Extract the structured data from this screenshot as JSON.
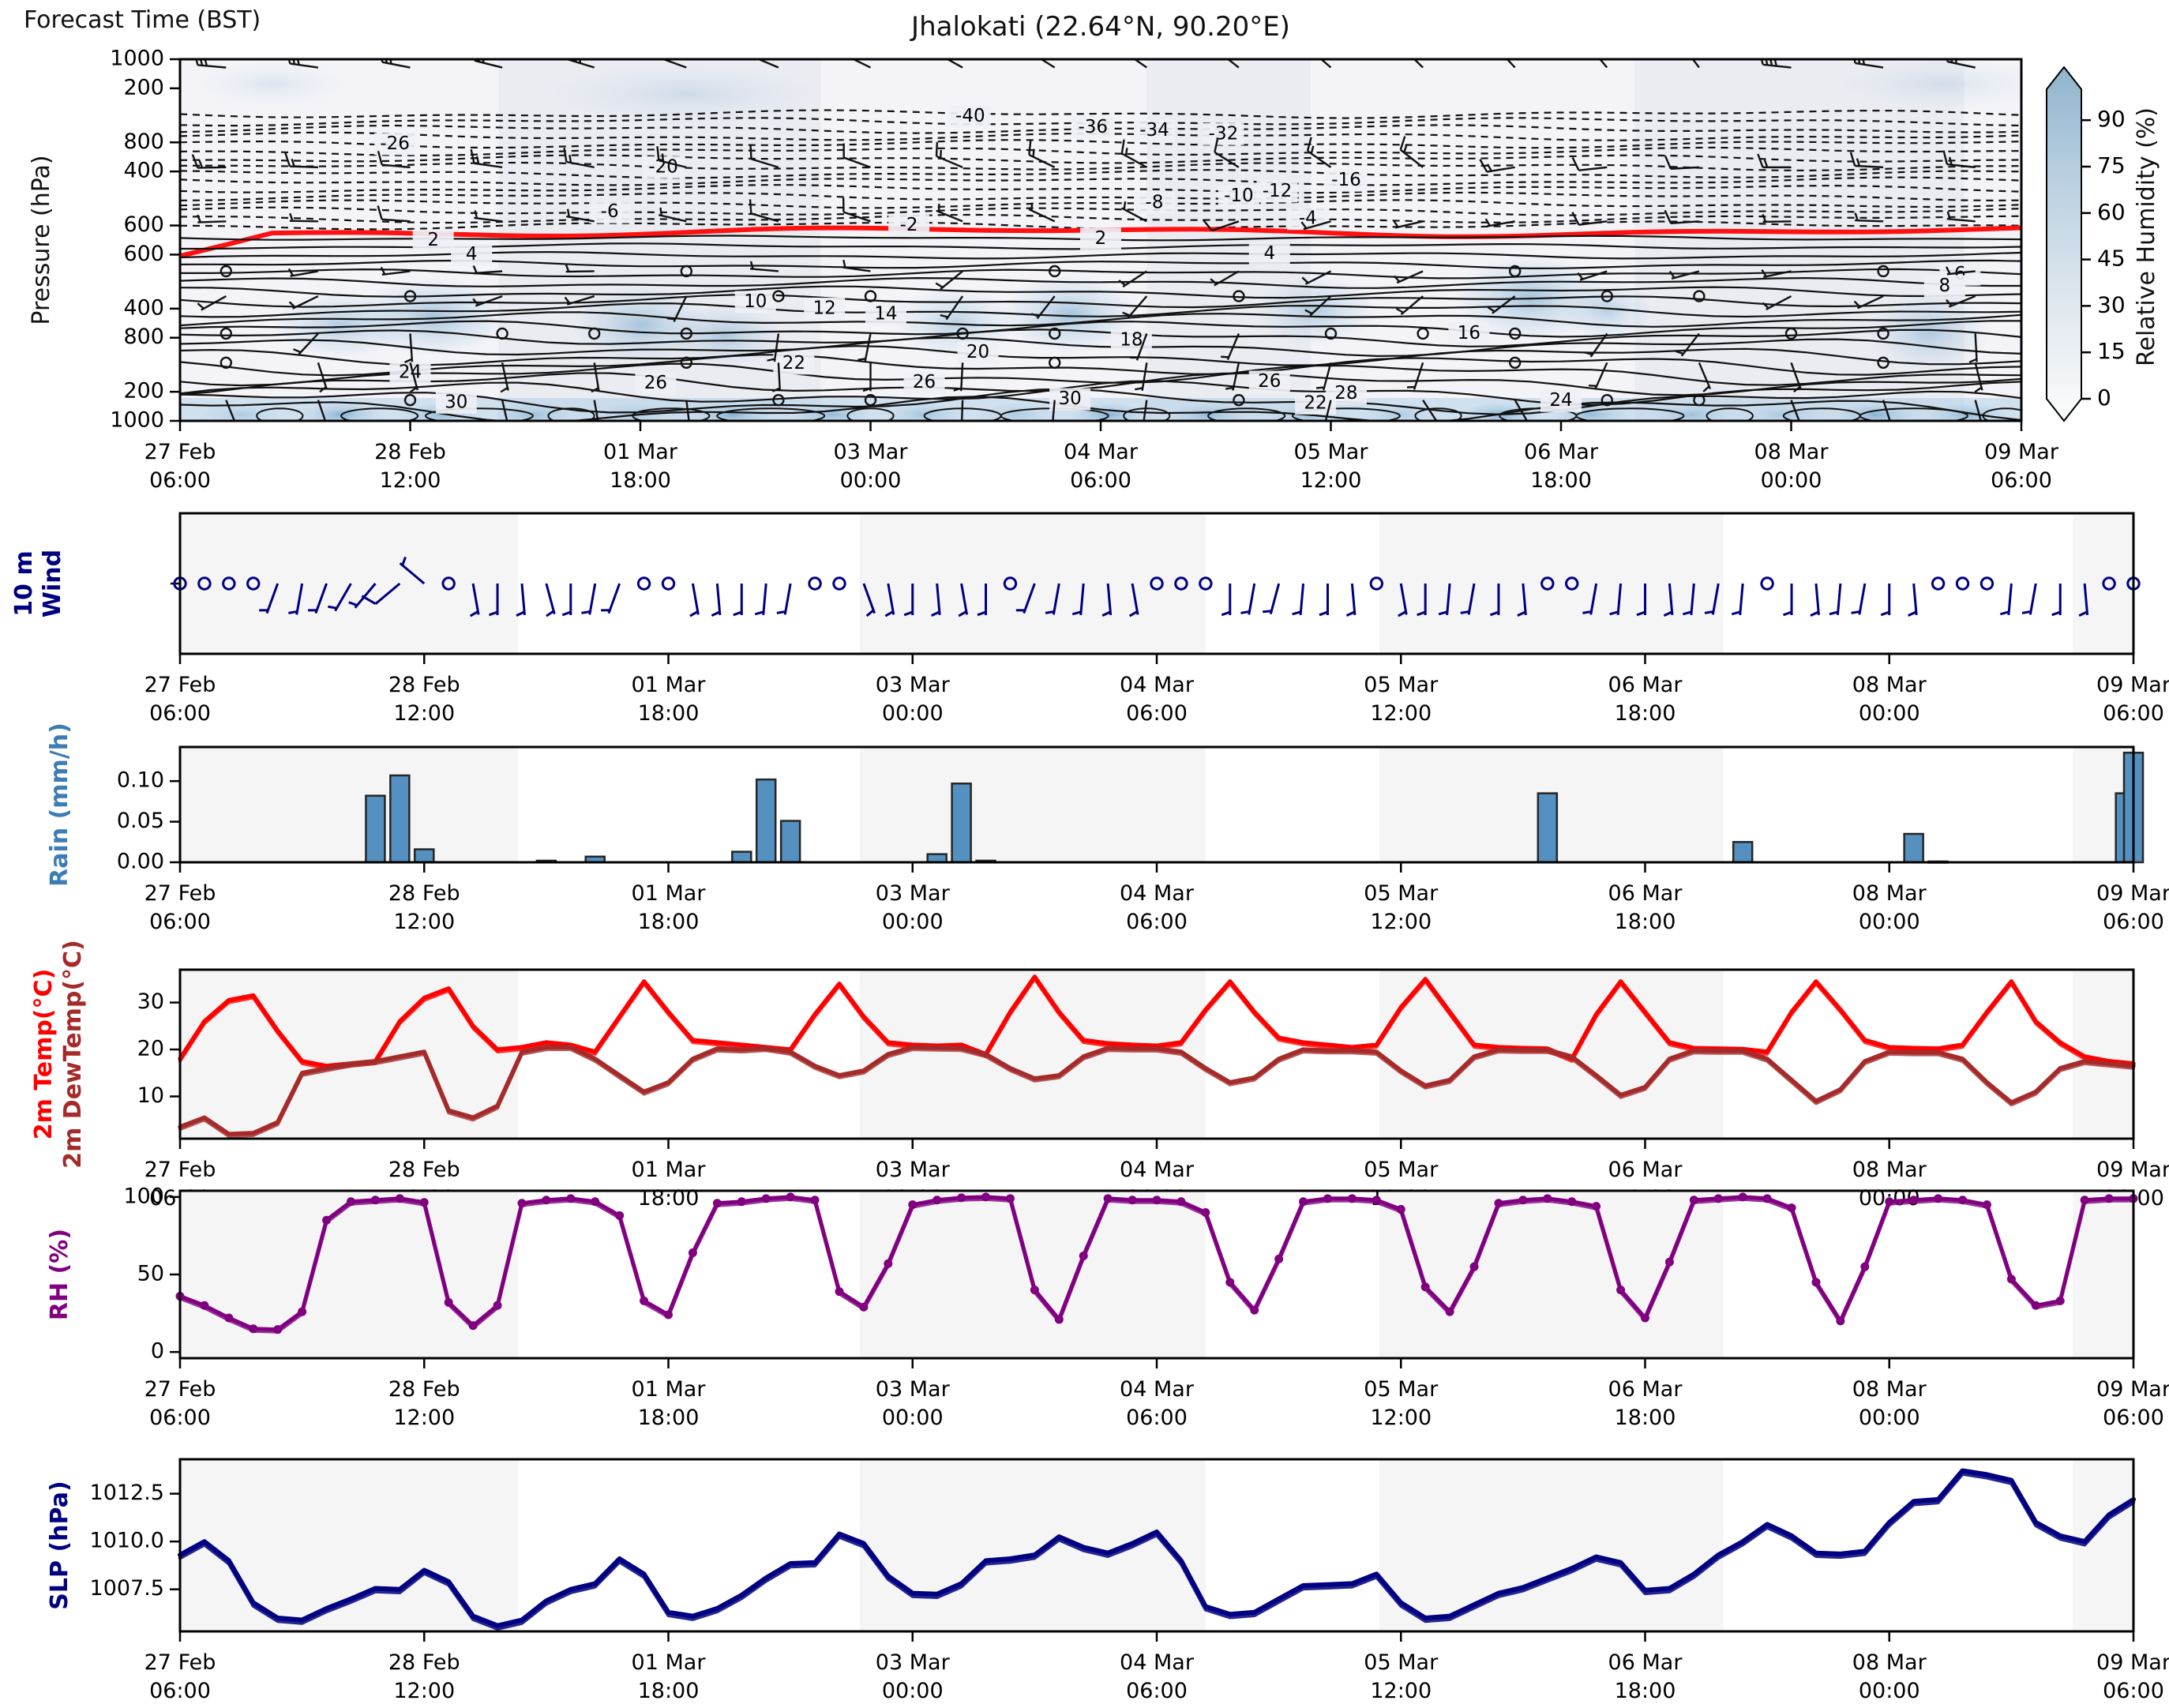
{
  "header": {
    "forecast_time_label": "Forecast Time (BST)",
    "title": "Jhalokati (22.64°N, 90.20°E)"
  },
  "labels": {
    "pressure": "Pressure (hPa)",
    "wind_line1": "10 m",
    "wind_line2": "Wind",
    "rain": "Rain (mm/h)",
    "temp": "2m Temp(°C)",
    "dew": "2m DewTemp(°C)",
    "rh": "RH (%)",
    "slp": "SLP (hPa)",
    "colorbar": "Relative Humidity (%)"
  },
  "colors": {
    "band": "#f5f5f6",
    "section_bg": "#ebecf2",
    "frame": "#000000",
    "temp": "#ff0000",
    "dew": "#a52a2a",
    "rh": "#800080",
    "slp": "#000080",
    "wind_barb": "#000080",
    "rain_fill": "#5491c1",
    "rain_edge": "#262626",
    "zero_line": "#ff1111",
    "contour": "#111111",
    "blob": "#5b94c0",
    "cbar_low": "#fcfcfc",
    "cbar_high": "#8fb4cd"
  },
  "x_axis": {
    "hours_total": 240,
    "step_hours": 3,
    "tick_hours": [
      0,
      30,
      60,
      90,
      120,
      150,
      180,
      210,
      240
    ],
    "tick_labels": [
      [
        "27 Feb",
        "06:00"
      ],
      [
        "28 Feb",
        "12:00"
      ],
      [
        "01 Mar",
        "18:00"
      ],
      [
        "03 Mar",
        "00:00"
      ],
      [
        "04 Mar",
        "06:00"
      ],
      [
        "05 Mar",
        "12:00"
      ],
      [
        "06 Mar",
        "18:00"
      ],
      [
        "08 Mar",
        "00:00"
      ],
      [
        "09 Mar",
        "06:00"
      ]
    ],
    "shading_bands": [
      [
        0,
        0.173
      ],
      [
        0.348,
        0.525
      ],
      [
        0.614,
        0.79
      ],
      [
        0.969,
        1.0
      ]
    ]
  },
  "chart_data": [
    {
      "id": "pressure_rh_section",
      "type": "heatmap",
      "title": "Jhalokati (22.64°N, 90.20°E)",
      "ylabel": "Pressure (hPa)",
      "yticks": [
        200,
        400,
        600,
        800,
        1000
      ],
      "ylim": [
        130,
        1000
      ],
      "colorbar": {
        "label": "Relative Humidity (%)",
        "ticks": [
          0,
          15,
          30,
          45,
          60,
          75,
          90
        ],
        "range": [
          0,
          100
        ]
      },
      "zero_isotherm_pressure": 545,
      "dashed_isotherm_pressures": [
        262,
        280,
        298,
        316,
        334,
        352,
        370,
        388,
        406,
        424,
        442,
        460,
        478,
        496,
        514,
        530
      ],
      "solid_isotherm_pressures": [
        560,
        580,
        602,
        624,
        646,
        668,
        690,
        712,
        734,
        756,
        778,
        800,
        822,
        844,
        866,
        888,
        910,
        932,
        954,
        974
      ],
      "dashed_contour_labels": [
        [
          -40,
          103,
          268
        ],
        [
          -36,
          119,
          294
        ],
        [
          -34,
          127,
          302
        ],
        [
          -32,
          136,
          310
        ],
        [
          -26,
          28,
          334
        ],
        [
          -20,
          63,
          390
        ],
        [
          -16,
          152,
          422
        ],
        [
          -12,
          143,
          448
        ],
        [
          -10,
          138,
          460
        ],
        [
          -8,
          127,
          476
        ],
        [
          -6,
          56,
          498
        ],
        [
          -4,
          147,
          514
        ],
        [
          -2,
          95,
          530
        ]
      ],
      "solid_contour_labels": [
        [
          2,
          33,
          566
        ],
        [
          2,
          120,
          562
        ],
        [
          4,
          38,
          600
        ],
        [
          4,
          142,
          598
        ],
        [
          6,
          232,
          648
        ],
        [
          8,
          230,
          676
        ],
        [
          10,
          75,
          714
        ],
        [
          12,
          84,
          730
        ],
        [
          14,
          92,
          744
        ],
        [
          16,
          168,
          790
        ],
        [
          18,
          124,
          806
        ],
        [
          20,
          104,
          836
        ],
        [
          22,
          80,
          862
        ],
        [
          24,
          30,
          884
        ],
        [
          26,
          62,
          910
        ],
        [
          26,
          97,
          908
        ],
        [
          26,
          142,
          906
        ],
        [
          28,
          152,
          934
        ],
        [
          30,
          36,
          956
        ],
        [
          30,
          116,
          948
        ],
        [
          22,
          148,
          958
        ],
        [
          24,
          180,
          952
        ]
      ],
      "rh_blobs": [
        [
          21,
          770,
          9,
          80,
          0.5
        ],
        [
          33,
          750,
          10,
          95,
          0.6
        ],
        [
          60,
          770,
          9,
          95,
          0.55
        ],
        [
          71,
          795,
          8,
          75,
          0.5
        ],
        [
          101,
          765,
          8,
          85,
          0.45
        ],
        [
          116,
          745,
          9,
          95,
          0.6
        ],
        [
          148,
          735,
          8,
          85,
          0.5
        ],
        [
          176,
          705,
          10,
          105,
          0.6
        ],
        [
          186,
          735,
          6,
          75,
          0.45
        ],
        [
          228,
          785,
          8,
          95,
          0.5
        ],
        [
          12,
          190,
          10,
          55,
          0.18
        ],
        [
          66,
          215,
          18,
          75,
          0.22
        ],
        [
          230,
          190,
          14,
          60,
          0.2
        ]
      ],
      "surface_moist_hours": [
        8,
        21,
        34,
        46,
        59,
        72,
        85,
        97,
        109,
        121,
        134,
        147,
        159,
        172,
        184,
        197,
        209,
        221,
        233
      ],
      "upper_wind_rows": [
        {
          "p": 150,
          "spd": 30,
          "dir": 300
        },
        {
          "p": 390,
          "spd": 14,
          "dir": 285
        },
        {
          "p": 520,
          "spd": 8,
          "dir": 275
        },
        {
          "p": 640,
          "spd": 5,
          "dir": 255
        },
        {
          "p": 700,
          "spd": 4,
          "dir": 230
        },
        {
          "p": 790,
          "spd": 2,
          "dir": 200
        },
        {
          "p": 860,
          "spd": 5,
          "dir": 180
        },
        {
          "p": 950,
          "spd": 4,
          "dir": 170
        }
      ]
    },
    {
      "id": "wind10m",
      "type": "barbs",
      "ylabel": [
        "10 m",
        "Wind"
      ],
      "barbs_spd_dir": [
        [
          1,
          0
        ],
        [
          0,
          0
        ],
        [
          2,
          340
        ],
        [
          0,
          0
        ],
        [
          5,
          200
        ],
        [
          5,
          190
        ],
        [
          7,
          200
        ],
        [
          6,
          210
        ],
        [
          8,
          220
        ],
        [
          10,
          230
        ],
        [
          5,
          310
        ],
        [
          0,
          0
        ],
        [
          5,
          170
        ],
        [
          6,
          180
        ],
        [
          7,
          175
        ],
        [
          5,
          165
        ],
        [
          5,
          180
        ],
        [
          6,
          190
        ],
        [
          5,
          200
        ],
        [
          0,
          0
        ],
        [
          0,
          0
        ],
        [
          5,
          170
        ],
        [
          6,
          175
        ],
        [
          5,
          180
        ],
        [
          5,
          185
        ],
        [
          3,
          190
        ],
        [
          0,
          0
        ],
        [
          0,
          0
        ],
        [
          6,
          160
        ],
        [
          7,
          170
        ],
        [
          6,
          180
        ],
        [
          5,
          175
        ],
        [
          5,
          170
        ],
        [
          6,
          180
        ],
        [
          0,
          0
        ],
        [
          3,
          200
        ],
        [
          5,
          190
        ],
        [
          6,
          185
        ],
        [
          5,
          175
        ],
        [
          3,
          170
        ],
        [
          0,
          0
        ],
        [
          0,
          0
        ],
        [
          0,
          0
        ],
        [
          4,
          180
        ],
        [
          5,
          190
        ],
        [
          6,
          195
        ],
        [
          5,
          185
        ],
        [
          4,
          180
        ],
        [
          3,
          175
        ],
        [
          0,
          0
        ],
        [
          5,
          170
        ],
        [
          6,
          180
        ],
        [
          7,
          185
        ],
        [
          6,
          190
        ],
        [
          5,
          180
        ],
        [
          4,
          175
        ],
        [
          0,
          0
        ],
        [
          0,
          0
        ],
        [
          5,
          190
        ],
        [
          6,
          185
        ],
        [
          7,
          180
        ],
        [
          6,
          175
        ],
        [
          5,
          185
        ],
        [
          4,
          190
        ],
        [
          3,
          185
        ],
        [
          0,
          0
        ],
        [
          4,
          180
        ],
        [
          5,
          175
        ],
        [
          6,
          185
        ],
        [
          5,
          190
        ],
        [
          4,
          180
        ],
        [
          3,
          175
        ],
        [
          0,
          0
        ],
        [
          0,
          0
        ],
        [
          0,
          0
        ],
        [
          4,
          185
        ],
        [
          5,
          190
        ],
        [
          5,
          180
        ],
        [
          4,
          175
        ],
        [
          0,
          0
        ],
        [
          0,
          0
        ]
      ]
    },
    {
      "id": "rain",
      "type": "bar",
      "ylabel": "Rain (mm/h)",
      "ytick_labels": [
        "0.00",
        "0.05",
        "0.10"
      ],
      "yticks": [
        0,
        0.05,
        0.1
      ],
      "ylim": [
        0,
        0.142
      ],
      "bars_hour_value": [
        [
          24,
          0.082
        ],
        [
          27,
          0.107
        ],
        [
          30,
          0.016
        ],
        [
          45,
          0.002
        ],
        [
          51,
          0.007
        ],
        [
          69,
          0.013
        ],
        [
          72,
          0.102
        ],
        [
          75,
          0.051
        ],
        [
          93,
          0.01
        ],
        [
          96,
          0.097
        ],
        [
          99,
          0.002
        ],
        [
          168,
          0.085
        ],
        [
          192,
          0.025
        ],
        [
          213,
          0.035
        ],
        [
          216,
          0.001
        ],
        [
          239,
          0.085
        ],
        [
          240,
          0.135
        ]
      ]
    },
    {
      "id": "temp",
      "type": "line",
      "ylabel_temp": "2m Temp(°C)",
      "ylabel_dew": "2m DewTemp(°C)",
      "yticks": [
        10,
        20,
        30
      ],
      "ylim": [
        1,
        37
      ],
      "series": [
        {
          "name": "2m Temp",
          "color": "#ff0000",
          "values": [
            18,
            26,
            30.5,
            31.5,
            24,
            17.5,
            16.5,
            17,
            17.5,
            26,
            31,
            33,
            25,
            20,
            20.5,
            21.5,
            21,
            19.5,
            27,
            34.5,
            28,
            22,
            21.5,
            21,
            20.5,
            20,
            27.5,
            34,
            27,
            21.5,
            21,
            20.8,
            21,
            19,
            28,
            35.5,
            28,
            22,
            21.3,
            21,
            20.8,
            21.5,
            28.5,
            34.5,
            28,
            22.5,
            21.5,
            21,
            20.5,
            21,
            29,
            35,
            28,
            21,
            20.5,
            20.3,
            20.2,
            18,
            27.5,
            34.5,
            28,
            21.5,
            20.3,
            20.2,
            20.1,
            19.5,
            28,
            34.5,
            28.5,
            22,
            20.5,
            20.3,
            20.2,
            21,
            28,
            34.5,
            26,
            21.5,
            18.5,
            17.5,
            17
          ]
        },
        {
          "name": "2m DewTemp",
          "color": "#a52a2a",
          "values": [
            3.5,
            5.5,
            2,
            2.2,
            4.5,
            15,
            16,
            17,
            17.5,
            18.5,
            19.5,
            7,
            5.5,
            8,
            19.5,
            20.5,
            20.5,
            18,
            14.5,
            11,
            13,
            18,
            20.2,
            20,
            20.3,
            19.5,
            16.5,
            14.5,
            15.5,
            19,
            20.5,
            20.4,
            20.3,
            19,
            16,
            13.8,
            14.5,
            18.5,
            20.3,
            20.2,
            20.2,
            19.5,
            16,
            13,
            14,
            18,
            20,
            19.8,
            19.8,
            19.5,
            15.5,
            12.3,
            13.5,
            18.5,
            20,
            19.9,
            19.9,
            18.5,
            14.5,
            10.3,
            12,
            18,
            19.8,
            19.7,
            19.7,
            18,
            13.5,
            9,
            11.5,
            17.5,
            19.5,
            19.4,
            19.4,
            18,
            13,
            8.7,
            11,
            16,
            17.5,
            17,
            16.5
          ]
        }
      ]
    },
    {
      "id": "rh",
      "type": "line",
      "ylabel": "RH (%)",
      "yticks": [
        0,
        50,
        100
      ],
      "ylim": [
        -4,
        104
      ],
      "series": [
        {
          "name": "RH",
          "color": "#800080",
          "marker": true,
          "values": [
            36,
            30,
            22,
            15,
            14.5,
            26,
            85,
            97,
            98,
            99,
            96.5,
            32,
            17,
            30,
            96,
            98,
            99,
            97,
            88,
            33,
            24,
            64,
            96,
            97,
            99,
            100,
            98,
            39,
            29,
            57,
            95,
            98,
            99.5,
            100,
            99,
            40,
            21,
            62,
            99,
            98,
            98,
            97,
            90,
            45,
            27,
            60,
            97,
            99,
            99,
            98,
            92,
            42,
            26,
            55,
            96,
            98,
            99,
            97,
            94,
            40,
            22,
            58,
            98,
            99,
            100,
            99,
            93,
            45,
            20,
            55,
            97,
            98,
            99,
            98,
            95,
            47,
            30,
            33,
            98,
            99,
            99
          ]
        }
      ]
    },
    {
      "id": "slp",
      "type": "line",
      "ylabel": "SLP (hPa)",
      "ytick_labels": [
        "1007.5",
        "1010.0",
        "1012.5"
      ],
      "yticks": [
        1007.5,
        1010,
        1012.5
      ],
      "ylim": [
        1005.3,
        1014.3
      ],
      "series": [
        {
          "name": "SLP",
          "color": "#000080",
          "values": [
            1009.3,
            1010,
            1009,
            1006.8,
            1006,
            1005.9,
            1006.5,
            1007,
            1007.55,
            1007.5,
            1008.5,
            1007.9,
            1006.1,
            1005.6,
            1005.9,
            1006.9,
            1007.5,
            1007.8,
            1009.1,
            1008.3,
            1006.3,
            1006.1,
            1006.5,
            1007.2,
            1008.1,
            1008.85,
            1008.9,
            1010.4,
            1009.9,
            1008.2,
            1007.3,
            1007.25,
            1007.8,
            1009,
            1009.1,
            1009.3,
            1010.25,
            1009.7,
            1009.4,
            1009.9,
            1010.5,
            1009,
            1006.6,
            1006.2,
            1006.3,
            1007,
            1007.7,
            1007.75,
            1007.8,
            1008.3,
            1006.8,
            1006,
            1006.1,
            1006.7,
            1007.3,
            1007.6,
            1008.1,
            1008.6,
            1009.2,
            1008.9,
            1007.45,
            1007.55,
            1008.3,
            1009.3,
            1010,
            1010.9,
            1010.3,
            1009.4,
            1009.35,
            1009.5,
            1011,
            1012.1,
            1012.2,
            1013.7,
            1013.5,
            1013.2,
            1011,
            1010.3,
            1010,
            1011.4,
            1012.2
          ]
        }
      ]
    }
  ]
}
